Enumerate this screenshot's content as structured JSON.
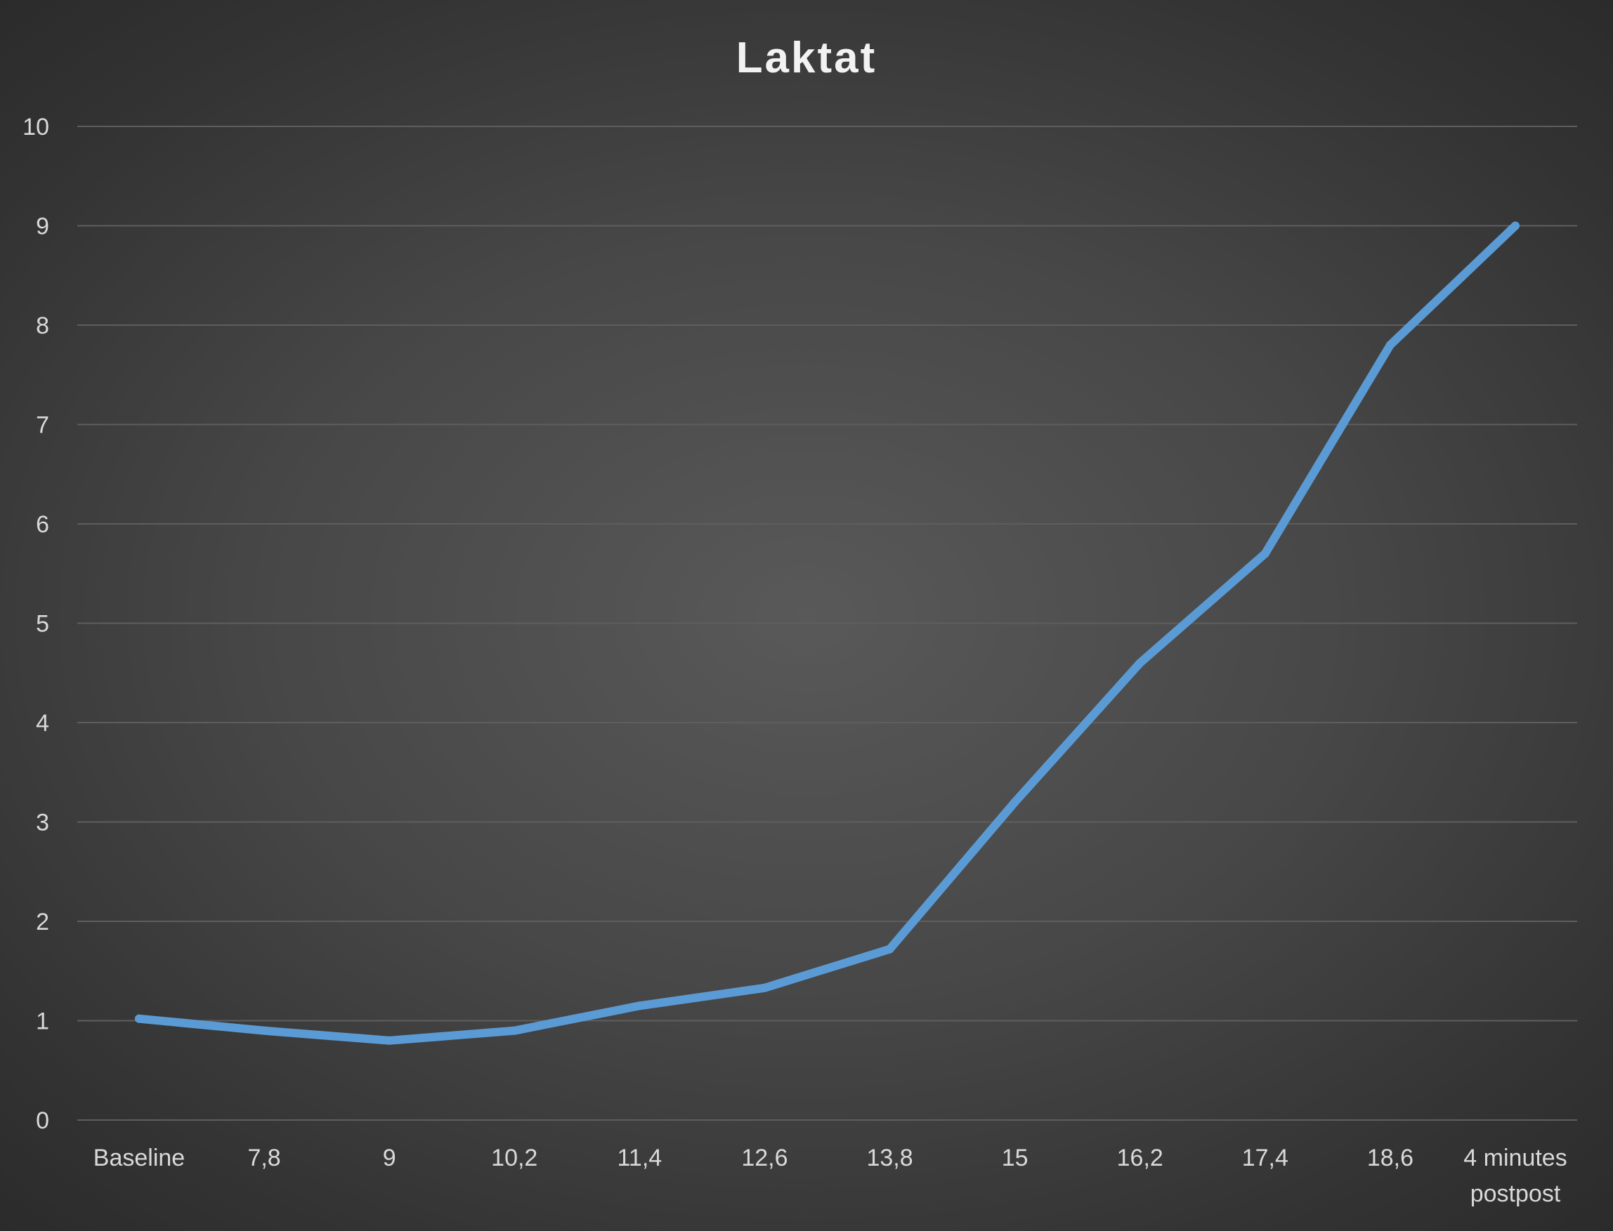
{
  "chart_data": {
    "type": "line",
    "title": "Laktat",
    "xlabel": "",
    "ylabel": "",
    "categories": [
      [
        "Baseline"
      ],
      [
        "7,8"
      ],
      [
        "9"
      ],
      [
        "10,2"
      ],
      [
        "11,4"
      ],
      [
        "12,6"
      ],
      [
        "13,8"
      ],
      [
        "15"
      ],
      [
        "16,2"
      ],
      [
        "17,4"
      ],
      [
        "18,6"
      ],
      [
        "4 minutes",
        "postpost"
      ]
    ],
    "series": [
      {
        "values": [
          1.02,
          0.9,
          0.8,
          0.9,
          1.15,
          1.33,
          1.72,
          3.2,
          4.6,
          5.7,
          7.8,
          9.0
        ],
        "color": "#5b9bd5"
      }
    ],
    "ylim": [
      0,
      10
    ],
    "yticks": [
      "0",
      "1",
      "2",
      "3",
      "4",
      "5",
      "6",
      "7",
      "8",
      "9",
      "10"
    ],
    "grid": true,
    "legend": "none"
  }
}
